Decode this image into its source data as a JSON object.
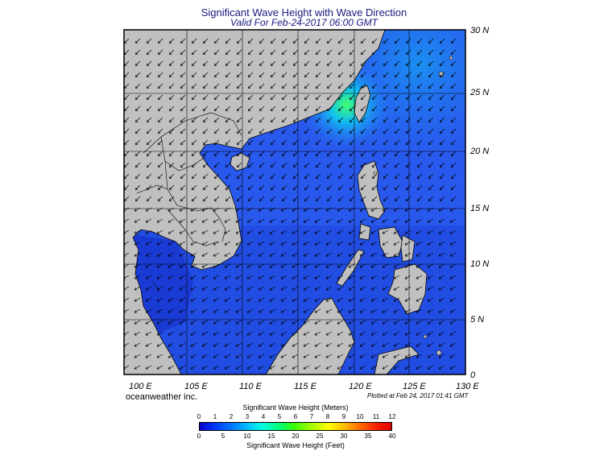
{
  "title": "Significant Wave Height with Wave Direction",
  "subtitle": "Valid For Feb-24-2017 06:00 GMT",
  "brand": "oceanweather inc.",
  "plotted": "Plotted at Feb 24, 2017 01:41 GMT",
  "lon_labels": [
    "100 E",
    "105 E",
    "110 E",
    "115 E",
    "120 E",
    "125 E",
    "130 E"
  ],
  "lat_labels": [
    "30 N",
    "25 N",
    "20 N",
    "15 N",
    "10 N",
    "5 N",
    "0"
  ],
  "colorbar": {
    "title_meters": "Significant Wave Height (Meters)",
    "title_feet": "Significant Wave Height (Feet)",
    "meters": [
      "0",
      "1",
      "2",
      "3",
      "4",
      "5",
      "6",
      "7",
      "8",
      "9",
      "10",
      "11",
      "12"
    ],
    "feet": [
      "0",
      "5",
      "10",
      "15",
      "20",
      "25",
      "30",
      "35",
      "40"
    ]
  },
  "colors": {
    "land": "#c0c0c0",
    "sea_low": "#1a3ad8",
    "sea_mid": "#2a5cf2",
    "sea_high": "#12a8f0",
    "peak": "#30e060"
  }
}
